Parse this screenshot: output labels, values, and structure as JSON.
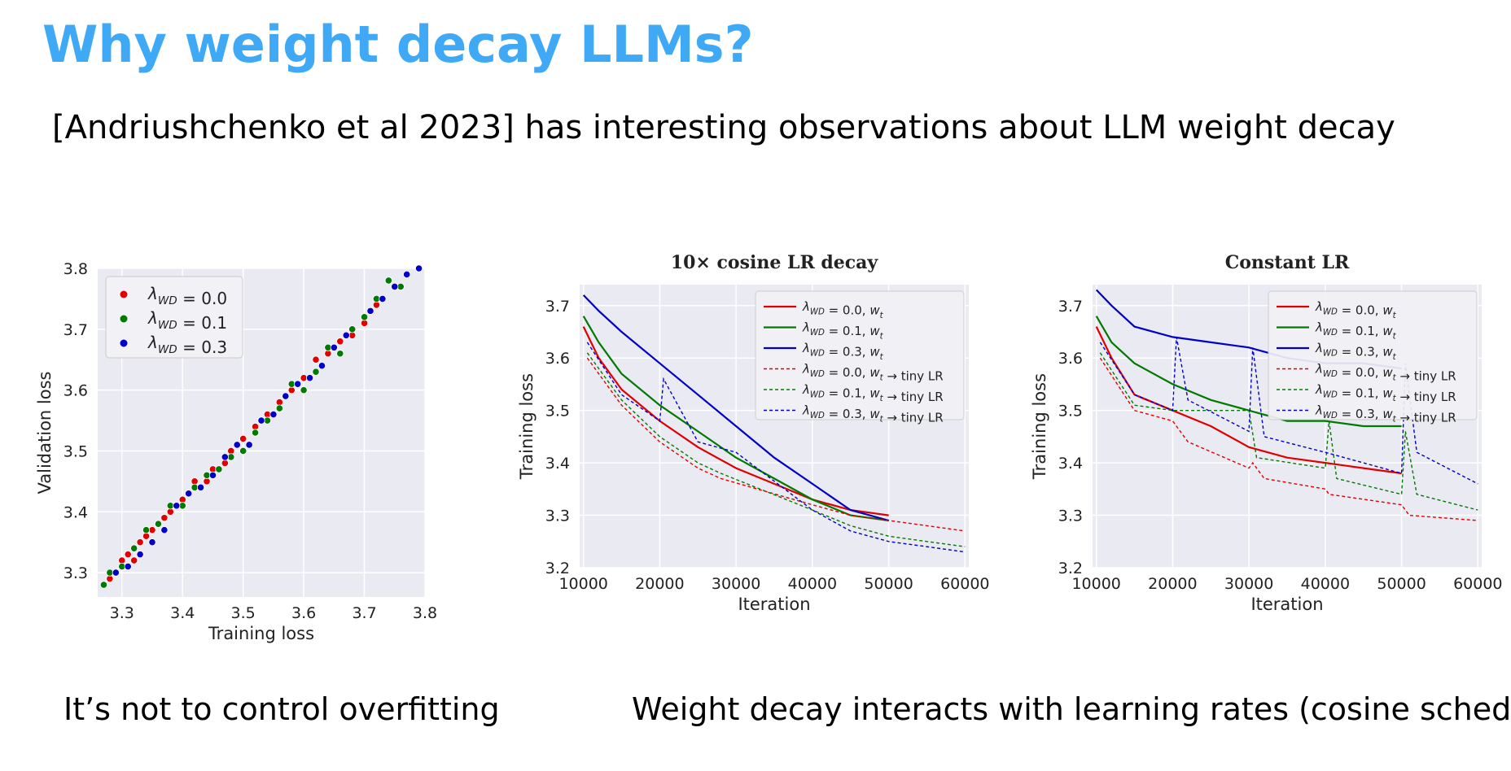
{
  "slide": {
    "title": "Why weight decay LLMs?",
    "subtitle": "[Andriushchenko et al 2023] has interesting observations about LLM weight decay",
    "caption_left": "It’s not  to control overfitting",
    "caption_right": "Weight decay interacts with learning rates (cosine schedule)"
  },
  "colors": {
    "title": "#3fa9f5",
    "red": "#e00000",
    "green": "#007a00",
    "blue": "#0000c8",
    "plot_bg": "#eaeaf2"
  },
  "chart_data": [
    {
      "id": "scatter",
      "type": "scatter",
      "title": "",
      "xlabel": "Training loss",
      "ylabel": "Validation loss",
      "xlim": [
        3.26,
        3.8
      ],
      "ylim": [
        3.26,
        3.8
      ],
      "xticks": [
        "3.3",
        "3.4",
        "3.5",
        "3.6",
        "3.7",
        "3.8"
      ],
      "yticks": [
        "3.3",
        "3.4",
        "3.5",
        "3.6",
        "3.7",
        "3.8"
      ],
      "legend": [
        "λ_WD = 0.0",
        "λ_WD = 0.1",
        "λ_WD = 0.3"
      ],
      "legend_position": "top-left",
      "series": [
        {
          "name": "λ_WD = 0.0",
          "color": "red",
          "points": [
            [
              3.28,
              3.29
            ],
            [
              3.29,
              3.3
            ],
            [
              3.3,
              3.32
            ],
            [
              3.31,
              3.33
            ],
            [
              3.32,
              3.32
            ],
            [
              3.33,
              3.35
            ],
            [
              3.34,
              3.36
            ],
            [
              3.35,
              3.37
            ],
            [
              3.36,
              3.38
            ],
            [
              3.37,
              3.39
            ],
            [
              3.38,
              3.4
            ],
            [
              3.4,
              3.42
            ],
            [
              3.41,
              3.43
            ],
            [
              3.42,
              3.45
            ],
            [
              3.44,
              3.45
            ],
            [
              3.45,
              3.47
            ],
            [
              3.47,
              3.48
            ],
            [
              3.48,
              3.5
            ],
            [
              3.5,
              3.52
            ],
            [
              3.52,
              3.54
            ],
            [
              3.54,
              3.56
            ],
            [
              3.56,
              3.58
            ],
            [
              3.58,
              3.6
            ],
            [
              3.6,
              3.62
            ],
            [
              3.62,
              3.65
            ],
            [
              3.64,
              3.66
            ],
            [
              3.66,
              3.68
            ],
            [
              3.68,
              3.69
            ],
            [
              3.7,
              3.71
            ],
            [
              3.72,
              3.74
            ]
          ]
        },
        {
          "name": "λ_WD = 0.1",
          "color": "green",
          "points": [
            [
              3.27,
              3.28
            ],
            [
              3.28,
              3.3
            ],
            [
              3.3,
              3.31
            ],
            [
              3.32,
              3.34
            ],
            [
              3.34,
              3.37
            ],
            [
              3.36,
              3.38
            ],
            [
              3.38,
              3.41
            ],
            [
              3.4,
              3.41
            ],
            [
              3.42,
              3.44
            ],
            [
              3.44,
              3.46
            ],
            [
              3.46,
              3.47
            ],
            [
              3.48,
              3.49
            ],
            [
              3.5,
              3.5
            ],
            [
              3.52,
              3.53
            ],
            [
              3.54,
              3.55
            ],
            [
              3.56,
              3.57
            ],
            [
              3.58,
              3.61
            ],
            [
              3.6,
              3.6
            ],
            [
              3.62,
              3.63
            ],
            [
              3.64,
              3.67
            ],
            [
              3.66,
              3.66
            ],
            [
              3.68,
              3.7
            ],
            [
              3.7,
              3.72
            ],
            [
              3.72,
              3.75
            ],
            [
              3.74,
              3.78
            ],
            [
              3.76,
              3.77
            ]
          ]
        },
        {
          "name": "λ_WD = 0.3",
          "color": "blue",
          "points": [
            [
              3.29,
              3.3
            ],
            [
              3.31,
              3.31
            ],
            [
              3.33,
              3.33
            ],
            [
              3.35,
              3.35
            ],
            [
              3.37,
              3.37
            ],
            [
              3.39,
              3.41
            ],
            [
              3.41,
              3.43
            ],
            [
              3.43,
              3.44
            ],
            [
              3.45,
              3.46
            ],
            [
              3.47,
              3.49
            ],
            [
              3.49,
              3.51
            ],
            [
              3.51,
              3.51
            ],
            [
              3.53,
              3.55
            ],
            [
              3.55,
              3.56
            ],
            [
              3.57,
              3.59
            ],
            [
              3.59,
              3.61
            ],
            [
              3.61,
              3.62
            ],
            [
              3.63,
              3.64
            ],
            [
              3.65,
              3.67
            ],
            [
              3.67,
              3.69
            ],
            [
              3.71,
              3.73
            ],
            [
              3.73,
              3.75
            ],
            [
              3.75,
              3.77
            ],
            [
              3.77,
              3.79
            ],
            [
              3.79,
              3.8
            ]
          ]
        }
      ]
    },
    {
      "id": "cosine",
      "type": "line",
      "title": "10× cosine LR decay",
      "xlabel": "Iteration",
      "ylabel": "Training loss",
      "xlim": [
        9500,
        60500
      ],
      "ylim": [
        3.2,
        3.74
      ],
      "xticks": [
        "10000",
        "20000",
        "30000",
        "40000",
        "50000",
        "60000"
      ],
      "yticks": [
        "3.2",
        "3.3",
        "3.4",
        "3.5",
        "3.6",
        "3.7"
      ],
      "legend": [
        "λ_WD = 0.0, w_t",
        "λ_WD = 0.1, w_t",
        "λ_WD = 0.3, w_t",
        "λ_WD = 0.0, w_t → tiny LR",
        "λ_WD = 0.1, w_t → tiny LR",
        "λ_WD = 0.3, w_t → tiny LR"
      ],
      "legend_position": "top-right",
      "series": [
        {
          "name": "λ_WD = 0.0, w_t",
          "color": "red",
          "style": "solid",
          "points": [
            [
              10000,
              3.66
            ],
            [
              12000,
              3.6
            ],
            [
              15000,
              3.54
            ],
            [
              20000,
              3.48
            ],
            [
              25000,
              3.43
            ],
            [
              30000,
              3.39
            ],
            [
              35000,
              3.36
            ],
            [
              40000,
              3.33
            ],
            [
              45000,
              3.31
            ],
            [
              50000,
              3.3
            ]
          ]
        },
        {
          "name": "λ_WD = 0.1, w_t",
          "color": "green",
          "style": "solid",
          "points": [
            [
              10000,
              3.68
            ],
            [
              12000,
              3.63
            ],
            [
              15000,
              3.57
            ],
            [
              20000,
              3.51
            ],
            [
              25000,
              3.46
            ],
            [
              30000,
              3.41
            ],
            [
              35000,
              3.37
            ],
            [
              40000,
              3.33
            ],
            [
              45000,
              3.3
            ],
            [
              50000,
              3.29
            ]
          ]
        },
        {
          "name": "λ_WD = 0.3, w_t",
          "color": "blue",
          "style": "solid",
          "points": [
            [
              10000,
              3.72
            ],
            [
              12000,
              3.69
            ],
            [
              15000,
              3.65
            ],
            [
              20000,
              3.59
            ],
            [
              25000,
              3.53
            ],
            [
              30000,
              3.47
            ],
            [
              35000,
              3.41
            ],
            [
              40000,
              3.36
            ],
            [
              45000,
              3.31
            ],
            [
              50000,
              3.29
            ]
          ]
        },
        {
          "name": "λ_WD = 0.0, w_t → tiny LR",
          "color": "red",
          "style": "dashed",
          "points": [
            [
              10500,
              3.6
            ],
            [
              15000,
              3.51
            ],
            [
              20000,
              3.44
            ],
            [
              25000,
              3.39
            ],
            [
              28000,
              3.37
            ],
            [
              40000,
              3.32
            ],
            [
              45000,
              3.3
            ],
            [
              50000,
              3.29
            ],
            [
              55000,
              3.28
            ],
            [
              60000,
              3.27
            ]
          ]
        },
        {
          "name": "λ_WD = 0.1, w_t → tiny LR",
          "color": "green",
          "style": "dashed",
          "points": [
            [
              10500,
              3.61
            ],
            [
              15000,
              3.52
            ],
            [
              20000,
              3.45
            ],
            [
              25000,
              3.4
            ],
            [
              28000,
              3.38
            ],
            [
              40000,
              3.31
            ],
            [
              45000,
              3.28
            ],
            [
              50000,
              3.26
            ],
            [
              55000,
              3.25
            ],
            [
              60000,
              3.24
            ]
          ]
        },
        {
          "name": "λ_WD = 0.3, w_t → tiny LR",
          "color": "blue",
          "style": "dashed",
          "points": [
            [
              10500,
              3.63
            ],
            [
              15000,
              3.53
            ],
            [
              20000,
              3.48
            ],
            [
              20500,
              3.56
            ],
            [
              25000,
              3.44
            ],
            [
              30000,
              3.42
            ],
            [
              40000,
              3.31
            ],
            [
              45000,
              3.27
            ],
            [
              50000,
              3.25
            ],
            [
              55000,
              3.24
            ],
            [
              60000,
              3.23
            ]
          ]
        }
      ]
    },
    {
      "id": "constant",
      "type": "line",
      "title": "Constant LR",
      "xlabel": "Iteration",
      "ylabel": "Training loss",
      "xlim": [
        9500,
        60500
      ],
      "ylim": [
        3.2,
        3.74
      ],
      "xticks": [
        "10000",
        "20000",
        "30000",
        "40000",
        "50000",
        "60000"
      ],
      "yticks": [
        "3.2",
        "3.3",
        "3.4",
        "3.5",
        "3.6",
        "3.7"
      ],
      "legend": [
        "λ_WD = 0.0, w_t",
        "λ_WD = 0.1, w_t",
        "λ_WD = 0.3, w_t",
        "λ_WD = 0.0, w_t → tiny LR",
        "λ_WD = 0.1, w_t → tiny LR",
        "λ_WD = 0.3, w_t → tiny LR"
      ],
      "legend_position": "top-right",
      "series": [
        {
          "name": "λ_WD = 0.0, w_t",
          "color": "red",
          "style": "solid",
          "points": [
            [
              10000,
              3.66
            ],
            [
              12000,
              3.6
            ],
            [
              15000,
              3.53
            ],
            [
              20000,
              3.5
            ],
            [
              25000,
              3.47
            ],
            [
              30000,
              3.43
            ],
            [
              35000,
              3.41
            ],
            [
              40000,
              3.4
            ],
            [
              45000,
              3.39
            ],
            [
              50000,
              3.38
            ]
          ]
        },
        {
          "name": "λ_WD = 0.1, w_t",
          "color": "green",
          "style": "solid",
          "points": [
            [
              10000,
              3.68
            ],
            [
              12000,
              3.63
            ],
            [
              15000,
              3.59
            ],
            [
              20000,
              3.55
            ],
            [
              25000,
              3.52
            ],
            [
              30000,
              3.5
            ],
            [
              35000,
              3.48
            ],
            [
              40000,
              3.48
            ],
            [
              45000,
              3.47
            ],
            [
              50000,
              3.47
            ]
          ]
        },
        {
          "name": "λ_WD = 0.3, w_t",
          "color": "blue",
          "style": "solid",
          "points": [
            [
              10000,
              3.73
            ],
            [
              12000,
              3.7
            ],
            [
              15000,
              3.66
            ],
            [
              20000,
              3.64
            ],
            [
              25000,
              3.63
            ],
            [
              30000,
              3.62
            ],
            [
              35000,
              3.6
            ],
            [
              40000,
              3.59
            ],
            [
              45000,
              3.59
            ],
            [
              50000,
              3.58
            ]
          ]
        },
        {
          "name": "λ_WD = 0.0, w_t → tiny LR",
          "color": "red",
          "style": "dashed",
          "points": [
            [
              10500,
              3.6
            ],
            [
              15000,
              3.5
            ],
            [
              20000,
              3.48
            ],
            [
              22000,
              3.44
            ],
            [
              30000,
              3.39
            ],
            [
              30500,
              3.4
            ],
            [
              32000,
              3.37
            ],
            [
              40000,
              3.35
            ],
            [
              40500,
              3.34
            ],
            [
              50000,
              3.32
            ],
            [
              51000,
              3.3
            ],
            [
              60000,
              3.29
            ]
          ]
        },
        {
          "name": "λ_WD = 0.1, w_t → tiny LR",
          "color": "green",
          "style": "dashed",
          "points": [
            [
              10500,
              3.61
            ],
            [
              15000,
              3.51
            ],
            [
              20000,
              3.5
            ],
            [
              30000,
              3.5
            ],
            [
              31000,
              3.41
            ],
            [
              40000,
              3.39
            ],
            [
              40500,
              3.48
            ],
            [
              41500,
              3.37
            ],
            [
              50000,
              3.34
            ],
            [
              50500,
              3.46
            ],
            [
              52000,
              3.34
            ],
            [
              60000,
              3.31
            ]
          ]
        },
        {
          "name": "λ_WD = 0.3, w_t → tiny LR",
          "color": "blue",
          "style": "dashed",
          "points": [
            [
              10500,
              3.63
            ],
            [
              15000,
              3.53
            ],
            [
              20000,
              3.5
            ],
            [
              20500,
              3.64
            ],
            [
              22000,
              3.52
            ],
            [
              30000,
              3.46
            ],
            [
              30500,
              3.62
            ],
            [
              32000,
              3.45
            ],
            [
              40000,
              3.42
            ],
            [
              50000,
              3.38
            ],
            [
              50500,
              3.59
            ],
            [
              52000,
              3.42
            ],
            [
              60000,
              3.36
            ]
          ]
        }
      ]
    }
  ]
}
